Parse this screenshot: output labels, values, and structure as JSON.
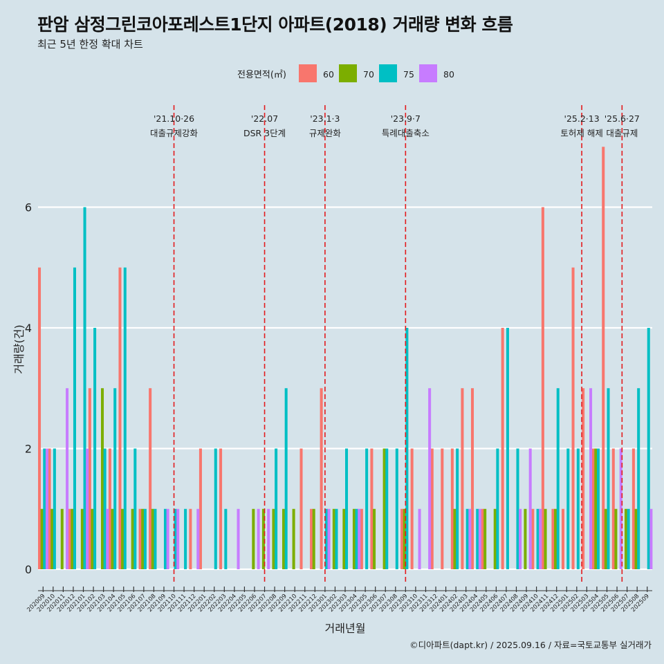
{
  "header": {
    "title": "판암 삼정그린코아포레스트1단지 아파트(2018) 거래량 변화 흐름",
    "subtitle": "최근 5년 한정 확대 차트"
  },
  "footer": {
    "caption": "©디아파트(dapt.kr) / 2025.09.16 / 자료=국토교통부 실거래가"
  },
  "chart_data": {
    "type": "bar",
    "title": "판암 삼정그린코아포레스트1단지 아파트(2018) 거래량 변화 흐름",
    "subtitle": "최근 5년 한정 확대 차트",
    "xlabel": "거래년월",
    "ylabel": "거래량(건)",
    "ylim": [
      0,
      7
    ],
    "yticks": [
      0,
      2,
      4,
      6
    ],
    "legend": {
      "title": "전용면적(㎡)",
      "position": "top"
    },
    "colors": {
      "60": "#F8766D",
      "70": "#7CAE00",
      "75": "#00BFC4",
      "80": "#C77CFF"
    },
    "categories": [
      "202009",
      "202010",
      "202011",
      "202012",
      "202101",
      "202102",
      "202103",
      "202104",
      "202105",
      "202106",
      "202107",
      "202108",
      "202109",
      "202110",
      "202111",
      "202112",
      "202201",
      "202202",
      "202203",
      "202204",
      "202205",
      "202206",
      "202207",
      "202208",
      "202209",
      "202210",
      "202211",
      "202212",
      "202301",
      "202302",
      "202303",
      "202304",
      "202305",
      "202306",
      "202307",
      "202308",
      "202309",
      "202310",
      "202311",
      "202312",
      "202401",
      "202402",
      "202403",
      "202404",
      "202405",
      "202406",
      "202407",
      "202408",
      "202409",
      "202410",
      "202411",
      "202412",
      "202501",
      "202502",
      "202503",
      "202504",
      "202505",
      "202506",
      "202507",
      "202508",
      "202509"
    ],
    "series": [
      {
        "name": "60",
        "values": [
          5,
          2,
          0,
          1,
          0,
          3,
          0,
          2,
          5,
          0,
          1,
          3,
          0,
          0,
          0,
          1,
          2,
          0,
          2,
          0,
          0,
          0,
          0,
          0,
          0,
          0,
          2,
          1,
          3,
          0,
          0,
          0,
          1,
          2,
          0,
          0,
          1,
          2,
          0,
          2,
          2,
          2,
          3,
          3,
          1,
          0,
          4,
          0,
          0,
          1,
          6,
          1,
          1,
          5,
          3,
          2,
          7,
          2,
          0,
          2,
          0
        ]
      },
      {
        "name": "70",
        "values": [
          1,
          1,
          1,
          1,
          1,
          1,
          3,
          1,
          1,
          1,
          1,
          1,
          0,
          0,
          0,
          0,
          0,
          0,
          0,
          0,
          0,
          1,
          1,
          1,
          1,
          1,
          0,
          1,
          0,
          1,
          1,
          1,
          0,
          1,
          2,
          0,
          1,
          0,
          0,
          0,
          0,
          1,
          0,
          0,
          1,
          1,
          0,
          0,
          1,
          0,
          1,
          1,
          0,
          0,
          0,
          2,
          1,
          1,
          1,
          1,
          0
        ]
      },
      {
        "name": "75",
        "values": [
          2,
          2,
          0,
          5,
          6,
          4,
          2,
          3,
          5,
          2,
          1,
          1,
          1,
          1,
          1,
          0,
          0,
          2,
          1,
          0,
          0,
          0,
          0,
          2,
          3,
          0,
          0,
          0,
          1,
          1,
          2,
          1,
          2,
          0,
          2,
          2,
          4,
          0,
          0,
          0,
          0,
          2,
          1,
          1,
          0,
          2,
          4,
          2,
          0,
          1,
          0,
          3,
          2,
          2,
          0,
          2,
          3,
          0,
          1,
          3,
          4
        ]
      },
      {
        "name": "80",
        "values": [
          2,
          0,
          3,
          0,
          2,
          0,
          1,
          0,
          0,
          0,
          0,
          0,
          1,
          1,
          0,
          1,
          0,
          0,
          0,
          1,
          0,
          1,
          1,
          0,
          0,
          0,
          0,
          0,
          1,
          0,
          0,
          1,
          0,
          0,
          0,
          0,
          0,
          1,
          3,
          0,
          0,
          0,
          1,
          1,
          0,
          0,
          0,
          1,
          2,
          1,
          0,
          0,
          0,
          0,
          3,
          0,
          0,
          2,
          0,
          0,
          1
        ]
      }
    ],
    "events": [
      {
        "label": "'21.10·26",
        "desc": "대출규제강화",
        "index": 13
      },
      {
        "label": "'22.07",
        "desc": "DSR 3단계",
        "index": 22
      },
      {
        "label": "'23.1·3",
        "desc": "규제완화",
        "index": 28
      },
      {
        "label": "'23.9·7",
        "desc": "특례대출축소",
        "index": 36
      },
      {
        "label": "'25.2·13",
        "desc": "토허제 해제",
        "index": 53.5
      },
      {
        "label": "'25.6·27",
        "desc": "대출규제",
        "index": 57.5
      }
    ]
  }
}
